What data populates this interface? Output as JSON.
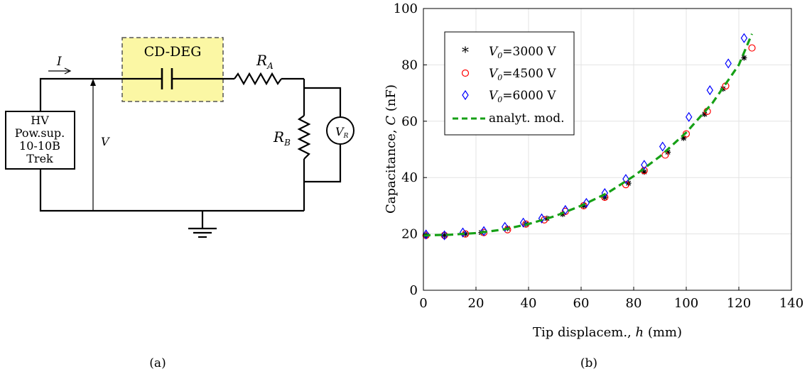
{
  "circuit": {
    "components": {
      "power_supply": [
        "HV",
        "Pow.sup.",
        "10-10B",
        "Trek"
      ],
      "deg_box": "CD-DEG",
      "resistor_a": {
        "sym": "R",
        "sub": "A"
      },
      "resistor_b": {
        "sym": "R",
        "sub": "B"
      },
      "voltmeter": {
        "sym": "V",
        "sub": "R"
      },
      "current": "I",
      "voltage": "V"
    },
    "caption": "(a)",
    "colors": {
      "deg_fill": "#fbf7a4",
      "deg_border": "#555555"
    }
  },
  "plot": {
    "caption": "(b)",
    "chart_data": {
      "type": "scatter",
      "xlabel": {
        "prefix": "Tip displacem., ",
        "var": "h",
        "suffix": " (mm)"
      },
      "ylabel": {
        "prefix": "Capacitance, ",
        "var": "C",
        "suffix": " (nF)"
      },
      "xlim": [
        0,
        140
      ],
      "ylim": [
        0,
        100
      ],
      "xticks": [
        0,
        20,
        40,
        60,
        80,
        100,
        120,
        140
      ],
      "yticks": [
        0,
        20,
        40,
        60,
        80,
        100
      ],
      "grid": true,
      "legend_position": "top-left",
      "series": [
        {
          "name": "=3000 V",
          "label_var": "V",
          "label_sub": "0",
          "marker": "asterisk",
          "color": "#000000",
          "x": [
            1,
            8,
            16,
            22,
            32,
            39,
            47,
            53,
            61,
            69,
            78,
            84,
            93,
            99,
            107,
            114,
            122
          ],
          "y": [
            19.5,
            19.5,
            20,
            20.5,
            22,
            23.5,
            25.5,
            27,
            30,
            33,
            38,
            42,
            49,
            54,
            62.5,
            71.5,
            82.5
          ]
        },
        {
          "name": "=4500 V",
          "label_var": "V",
          "label_sub": "0",
          "marker": "circle",
          "color": "#ff0000",
          "x": [
            1,
            8,
            16,
            23,
            32,
            39,
            46,
            54,
            61,
            69,
            77,
            84,
            92,
            100,
            108,
            115,
            125
          ],
          "y": [
            19.5,
            19.5,
            20,
            20.5,
            21.5,
            23.5,
            25,
            28,
            30,
            33,
            37.5,
            42.5,
            48,
            55.5,
            63.5,
            72.5,
            86
          ]
        },
        {
          "name": "=6000 V",
          "label_var": "V",
          "label_sub": "0",
          "marker": "diamond",
          "color": "#0000ff",
          "x": [
            1,
            8,
            15,
            23,
            31,
            38,
            45,
            54,
            62,
            69,
            77,
            84,
            91,
            101,
            109,
            116,
            122
          ],
          "y": [
            19.8,
            19.5,
            20.5,
            21,
            22.5,
            24,
            25.5,
            28.5,
            31,
            34.5,
            39.5,
            44.5,
            51,
            61.5,
            71,
            80.5,
            89.5
          ]
        },
        {
          "name": "analyt. mod.",
          "marker": "dashed-line",
          "color": "#16a016",
          "x": [
            0,
            10,
            20,
            30,
            40,
            50,
            60,
            70,
            80,
            90,
            100,
            110,
            120,
            125
          ],
          "y": [
            19.5,
            19.7,
            20.3,
            21.5,
            23.5,
            26.3,
            30,
            34.5,
            40.5,
            47.5,
            56,
            66.5,
            80,
            91
          ]
        }
      ]
    }
  }
}
